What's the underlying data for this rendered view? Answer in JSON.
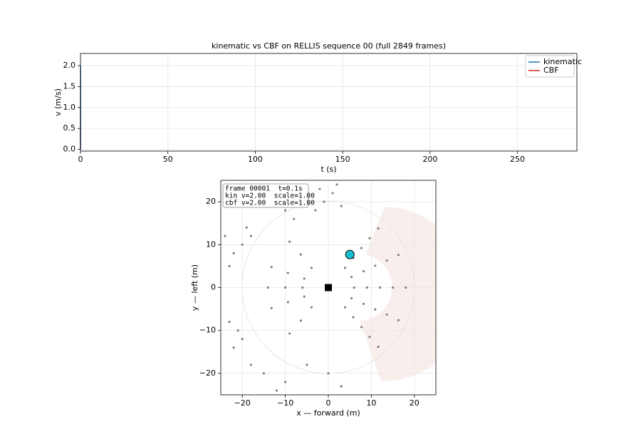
{
  "chart_data": [
    {
      "type": "line",
      "title": "kinematic vs CBF on RELLIS sequence 00 (full 2849 frames)",
      "x_label": "t (s)",
      "y_label": "v (m/s)",
      "x": [
        0,
        0.1
      ],
      "series": [
        {
          "name": "kinematic",
          "color": "#1f77b4",
          "values": [
            0,
            2.0
          ]
        },
        {
          "name": "CBF",
          "color": "#d62728",
          "values": [
            0,
            2.0
          ]
        }
      ],
      "xlim": [
        0,
        284
      ],
      "xticks": [
        0,
        50,
        100,
        150,
        200,
        250
      ],
      "ylim": [
        -0.04,
        2.29
      ],
      "yticks": [
        {
          "value": 0,
          "label": "0.0"
        },
        {
          "value": 0.5,
          "label": "0.5"
        },
        {
          "value": 1,
          "label": "1.0"
        },
        {
          "value": 1.5,
          "label": "1.5"
        },
        {
          "value": 2,
          "label": "2.0"
        }
      ],
      "grid": true,
      "legend": "upper right"
    },
    {
      "type": "scatter",
      "x_label": "x — forward (m)",
      "y_label": "y — left (m)",
      "annotation": [
        "frame 00001  t=0.1s",
        "kin v=2.00  scale=1.00",
        "cbf v=2.00  scale=1.00"
      ],
      "series": [
        {
          "color": "#808080",
          "marker": "dot",
          "x": [
            3.9,
            5.4,
            6.0,
            5.4,
            3.9,
            5.8,
            8.2,
            9,
            8.2,
            5.8,
            7.7,
            10.9,
            12,
            10.9,
            7.7,
            9.6,
            13.6,
            15,
            13.6,
            9.6,
            11.6,
            16.3,
            18,
            16.3,
            11.6,
            -3.9,
            -5.6,
            -6,
            -5.6,
            -3.9,
            -6.4,
            -9.4,
            -10,
            -9.4,
            -6.4,
            -9,
            -13.2,
            -14,
            -13.2,
            -9,
            -3,
            -1,
            1,
            3,
            -5,
            2,
            -8,
            -2,
            -20,
            -22,
            -18,
            -23,
            -19,
            -24,
            -21,
            -23,
            -20,
            -22,
            -15,
            -10,
            -5,
            0,
            -12,
            3,
            -18,
            -15,
            -12,
            -10,
            -18
          ],
          "values": [
            -4.6,
            -2.5,
            0,
            2.5,
            4.6,
            -6.9,
            -3.8,
            0,
            3.8,
            6.9,
            -9.2,
            -5.1,
            0,
            5.1,
            9.2,
            -11.5,
            -6.3,
            0,
            6.3,
            11.5,
            -13.8,
            -7.6,
            0,
            7.6,
            13.8,
            4.6,
            2.1,
            0,
            -2.1,
            -4.6,
            7.7,
            3.4,
            0,
            -3.4,
            -7.7,
            10.7,
            4.8,
            0,
            -4.8,
            -10.7,
            18,
            20,
            22,
            19,
            21,
            24,
            16,
            23,
            10,
            8,
            12,
            5,
            14,
            12,
            -10,
            -8,
            -12,
            -14,
            -20,
            -22,
            -18,
            -20,
            -24,
            -23,
            -18,
            20,
            22,
            18,
            22
          ]
        },
        {
          "color": "#000000",
          "marker": "square",
          "x": [
            0
          ],
          "values": [
            0
          ]
        },
        {
          "color": "#17becf",
          "marker": "circle",
          "x": [
            5
          ],
          "values": [
            7.7
          ]
        }
      ],
      "xlim": [
        -25,
        25
      ],
      "xticks": [
        {
          "value": -20,
          "label": "−20"
        },
        {
          "value": -10,
          "label": "−10"
        },
        0,
        10,
        20
      ],
      "ylim": [
        -25,
        25
      ],
      "yticks": [
        {
          "value": -20,
          "label": "−20"
        },
        {
          "value": -10,
          "label": "−10"
        },
        0,
        10,
        20
      ],
      "grid": true
    }
  ]
}
